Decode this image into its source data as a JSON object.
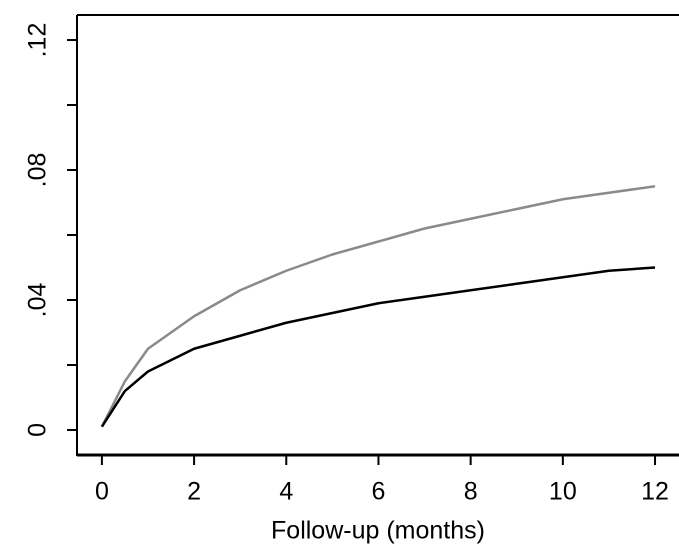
{
  "chart_data": {
    "type": "line",
    "x_label": "Follow-up (months)",
    "xlim": [
      -0.54,
      12.52
    ],
    "xticks": [
      0,
      2,
      4,
      6,
      8,
      10,
      12
    ],
    "ylim": [
      -0.0077,
      0.1277
    ],
    "yticks": [
      {
        "value": 0,
        "label": "0"
      },
      {
        "value": 0.04,
        "label": ".04"
      },
      {
        "value": 0.08,
        "label": ".08"
      },
      {
        "value": 0.12,
        "label": ".12"
      }
    ],
    "yticks_minor": [
      0.02,
      0.06,
      0.1
    ],
    "series": [
      {
        "color": "#8a8a8a",
        "x": [
          0,
          0.5,
          1,
          2,
          3,
          4,
          5,
          6,
          7,
          8,
          9,
          10,
          11,
          12
        ],
        "values": [
          0.001,
          0.015,
          0.025,
          0.035,
          0.043,
          0.049,
          0.054,
          0.058,
          0.062,
          0.065,
          0.068,
          0.071,
          0.073,
          0.075
        ]
      },
      {
        "color": "#000000",
        "x": [
          0,
          0.5,
          1,
          2,
          3,
          4,
          5,
          6,
          7,
          8,
          9,
          10,
          11,
          12
        ],
        "values": [
          0.001,
          0.012,
          0.018,
          0.025,
          0.029,
          0.033,
          0.036,
          0.039,
          0.041,
          0.043,
          0.045,
          0.047,
          0.049,
          0.05
        ]
      }
    ]
  }
}
